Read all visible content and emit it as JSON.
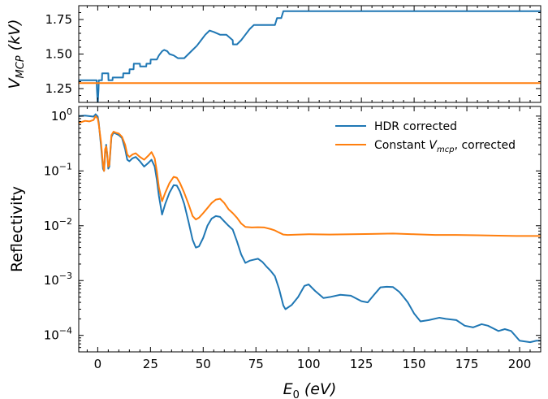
{
  "chart_data": [
    {
      "type": "line",
      "panel": "top",
      "ylabel": {
        "main": "V",
        "sub": "MCP",
        "units": " (kV)"
      },
      "xlim": [
        -9,
        210
      ],
      "ylim": [
        1.15,
        1.85
      ],
      "yticks": [
        1.25,
        1.5,
        1.75
      ],
      "ytick_labels": [
        "1.25",
        "1.50",
        "1.75"
      ],
      "series": [
        {
          "color": "#1f77b4",
          "points": [
            [
              -9,
              1.31
            ],
            [
              -0.5,
              1.31
            ],
            [
              -0.4,
              1.25
            ],
            [
              0,
              1.14
            ],
            [
              0.4,
              1.25
            ],
            [
              0.5,
              1.31
            ],
            [
              2,
              1.31
            ],
            [
              2.1,
              1.36
            ],
            [
              5,
              1.36
            ],
            [
              5.1,
              1.31
            ],
            [
              7,
              1.31
            ],
            [
              7.1,
              1.33
            ],
            [
              12,
              1.33
            ],
            [
              12.1,
              1.36
            ],
            [
              15,
              1.36
            ],
            [
              15.1,
              1.39
            ],
            [
              17,
              1.39
            ],
            [
              17.1,
              1.43
            ],
            [
              20,
              1.43
            ],
            [
              20.1,
              1.41
            ],
            [
              23,
              1.41
            ],
            [
              23.1,
              1.43
            ],
            [
              25,
              1.43
            ],
            [
              25.1,
              1.46
            ],
            [
              28,
              1.46
            ],
            [
              29,
              1.49
            ],
            [
              30.5,
              1.52
            ],
            [
              31.5,
              1.53
            ],
            [
              33,
              1.52
            ],
            [
              34,
              1.5
            ],
            [
              36,
              1.49
            ],
            [
              38,
              1.47
            ],
            [
              41,
              1.47
            ],
            [
              43,
              1.5
            ],
            [
              45,
              1.53
            ],
            [
              47,
              1.56
            ],
            [
              49,
              1.6
            ],
            [
              51,
              1.64
            ],
            [
              53,
              1.67
            ],
            [
              55,
              1.66
            ],
            [
              58,
              1.64
            ],
            [
              61,
              1.64
            ],
            [
              64,
              1.6
            ],
            [
              64.1,
              1.57
            ],
            [
              66,
              1.57
            ],
            [
              68,
              1.6
            ],
            [
              70,
              1.64
            ],
            [
              72,
              1.68
            ],
            [
              74,
              1.71
            ],
            [
              84,
              1.71
            ],
            [
              85,
              1.76
            ],
            [
              87,
              1.76
            ],
            [
              88,
              1.81
            ],
            [
              210,
              1.81
            ]
          ]
        },
        {
          "color": "#ff7f0e",
          "points": [
            [
              -9,
              1.29
            ],
            [
              210,
              1.29
            ]
          ]
        }
      ]
    },
    {
      "type": "line",
      "panel": "bottom",
      "scale": "log",
      "ylabel": "Reflectivity",
      "xlabel": {
        "main": "E",
        "sub": "0",
        "units": " (eV)"
      },
      "xlim": [
        -9,
        210
      ],
      "ylim": [
        5e-05,
        1.5
      ],
      "xticks": [
        0,
        25,
        50,
        75,
        100,
        125,
        150,
        175,
        200
      ],
      "xtick_labels": [
        "0",
        "25",
        "50",
        "75",
        "100",
        "125",
        "150",
        "175",
        "200"
      ],
      "yticks": [
        0.0001,
        0.001,
        0.01,
        0.1,
        1
      ],
      "ytick_labels": [
        {
          "base": "10",
          "exp": "−4"
        },
        {
          "base": "10",
          "exp": "−3"
        },
        {
          "base": "10",
          "exp": "−2"
        },
        {
          "base": "10",
          "exp": "−1"
        },
        {
          "base": "10",
          "exp": "0"
        }
      ],
      "legend": {
        "position": "top-right",
        "entries": [
          {
            "color": "#1f77b4",
            "label": "HDR corrected"
          },
          {
            "color": "#ff7f0e",
            "label_parts": [
              "Constant ",
              "V",
              "mcp",
              ", corrected"
            ]
          }
        ]
      },
      "series": [
        {
          "color": "#1f77b4",
          "points": [
            [
              -9,
              1.0
            ],
            [
              -6,
              1.02
            ],
            [
              -4,
              1.0
            ],
            [
              -2,
              0.98
            ],
            [
              -1,
              1.08
            ],
            [
              0,
              0.98
            ],
            [
              0.5,
              0.75
            ],
            [
              1.5,
              0.3
            ],
            [
              2.5,
              0.11
            ],
            [
              3,
              0.1
            ],
            [
              3.5,
              0.2
            ],
            [
              4,
              0.3
            ],
            [
              4.5,
              0.2
            ],
            [
              5,
              0.11
            ],
            [
              5.5,
              0.12
            ],
            [
              6.5,
              0.42
            ],
            [
              7.5,
              0.5
            ],
            [
              8.5,
              0.48
            ],
            [
              10,
              0.45
            ],
            [
              11.5,
              0.4
            ],
            [
              13,
              0.25
            ],
            [
              14,
              0.16
            ],
            [
              15,
              0.15
            ],
            [
              16.5,
              0.17
            ],
            [
              18,
              0.18
            ],
            [
              20,
              0.15
            ],
            [
              22,
              0.12
            ],
            [
              24,
              0.14
            ],
            [
              25.5,
              0.16
            ],
            [
              27,
              0.12
            ],
            [
              28,
              0.07
            ],
            [
              29,
              0.035
            ],
            [
              30.5,
              0.016
            ],
            [
              32,
              0.025
            ],
            [
              34,
              0.04
            ],
            [
              36,
              0.055
            ],
            [
              37.5,
              0.054
            ],
            [
              39,
              0.042
            ],
            [
              41,
              0.025
            ],
            [
              43,
              0.012
            ],
            [
              45,
              0.0055
            ],
            [
              46.5,
              0.004
            ],
            [
              48,
              0.0042
            ],
            [
              50,
              0.006
            ],
            [
              52,
              0.01
            ],
            [
              54,
              0.0135
            ],
            [
              56,
              0.015
            ],
            [
              58,
              0.0145
            ],
            [
              60,
              0.012
            ],
            [
              62,
              0.01
            ],
            [
              64,
              0.0085
            ],
            [
              66,
              0.0052
            ],
            [
              68,
              0.003
            ],
            [
              70,
              0.0021
            ],
            [
              72,
              0.0023
            ],
            [
              74,
              0.0024
            ],
            [
              76,
              0.0025
            ],
            [
              78,
              0.0022
            ],
            [
              80,
              0.0018
            ],
            [
              82,
              0.0015
            ],
            [
              84,
              0.0012
            ],
            [
              86,
              0.0007
            ],
            [
              88,
              0.00035
            ],
            [
              89,
              0.0003
            ],
            [
              92,
              0.00036
            ],
            [
              95,
              0.0005
            ],
            [
              98,
              0.0008
            ],
            [
              100,
              0.00085
            ],
            [
              103,
              0.00065
            ],
            [
              107,
              0.00048
            ],
            [
              110,
              0.0005
            ],
            [
              115,
              0.00055
            ],
            [
              120,
              0.00053
            ],
            [
              125,
              0.00042
            ],
            [
              128,
              0.0004
            ],
            [
              131,
              0.00055
            ],
            [
              134,
              0.00075
            ],
            [
              137,
              0.00077
            ],
            [
              140,
              0.00076
            ],
            [
              143,
              0.00062
            ],
            [
              145,
              0.0005
            ],
            [
              147,
              0.0004
            ],
            [
              150,
              0.00025
            ],
            [
              153,
              0.00018
            ],
            [
              157,
              0.00019
            ],
            [
              162,
              0.00021
            ],
            [
              165,
              0.0002
            ],
            [
              170,
              0.00019
            ],
            [
              174,
              0.00015
            ],
            [
              178,
              0.00014
            ],
            [
              182,
              0.00016
            ],
            [
              185,
              0.00015
            ],
            [
              190,
              0.00012
            ],
            [
              193,
              0.00013
            ],
            [
              196,
              0.00012
            ],
            [
              200,
              8e-05
            ],
            [
              205,
              7.5e-05
            ],
            [
              208,
              8e-05
            ],
            [
              210,
              8e-05
            ]
          ]
        },
        {
          "color": "#ff7f0e",
          "points": [
            [
              -9,
              0.75
            ],
            [
              -6,
              0.82
            ],
            [
              -4,
              0.8
            ],
            [
              -2,
              0.85
            ],
            [
              -1,
              1.0
            ],
            [
              0,
              0.9
            ],
            [
              0.5,
              0.7
            ],
            [
              1.5,
              0.35
            ],
            [
              2.5,
              0.13
            ],
            [
              3,
              0.1
            ],
            [
              3.5,
              0.25
            ],
            [
              4,
              0.28
            ],
            [
              4.5,
              0.2
            ],
            [
              5,
              0.12
            ],
            [
              5.5,
              0.13
            ],
            [
              6.5,
              0.45
            ],
            [
              7.5,
              0.52
            ],
            [
              8.5,
              0.5
            ],
            [
              10,
              0.48
            ],
            [
              11.5,
              0.42
            ],
            [
              13,
              0.3
            ],
            [
              14,
              0.2
            ],
            [
              15,
              0.18
            ],
            [
              16.5,
              0.2
            ],
            [
              18,
              0.21
            ],
            [
              20,
              0.18
            ],
            [
              22,
              0.16
            ],
            [
              24,
              0.19
            ],
            [
              25.5,
              0.22
            ],
            [
              27,
              0.17
            ],
            [
              28,
              0.1
            ],
            [
              29,
              0.05
            ],
            [
              30.5,
              0.028
            ],
            [
              32,
              0.04
            ],
            [
              34,
              0.06
            ],
            [
              36,
              0.078
            ],
            [
              37.5,
              0.075
            ],
            [
              39,
              0.06
            ],
            [
              41,
              0.04
            ],
            [
              43,
              0.025
            ],
            [
              45,
              0.015
            ],
            [
              46.5,
              0.013
            ],
            [
              48,
              0.014
            ],
            [
              50,
              0.017
            ],
            [
              52,
              0.021
            ],
            [
              54,
              0.026
            ],
            [
              56,
              0.03
            ],
            [
              58,
              0.031
            ],
            [
              60,
              0.026
            ],
            [
              62,
              0.02
            ],
            [
              64,
              0.017
            ],
            [
              66,
              0.014
            ],
            [
              68,
              0.011
            ],
            [
              70,
              0.0095
            ],
            [
              73,
              0.0093
            ],
            [
              76,
              0.0094
            ],
            [
              79,
              0.0093
            ],
            [
              82,
              0.0087
            ],
            [
              84,
              0.0082
            ],
            [
              86,
              0.0075
            ],
            [
              88,
              0.0069
            ],
            [
              90,
              0.0068
            ],
            [
              100,
              0.007
            ],
            [
              110,
              0.0069
            ],
            [
              120,
              0.007
            ],
            [
              130,
              0.0071
            ],
            [
              140,
              0.0072
            ],
            [
              150,
              0.007
            ],
            [
              160,
              0.0068
            ],
            [
              170,
              0.0068
            ],
            [
              180,
              0.0067
            ],
            [
              190,
              0.0066
            ],
            [
              200,
              0.0065
            ],
            [
              210,
              0.0065
            ]
          ]
        }
      ]
    }
  ]
}
